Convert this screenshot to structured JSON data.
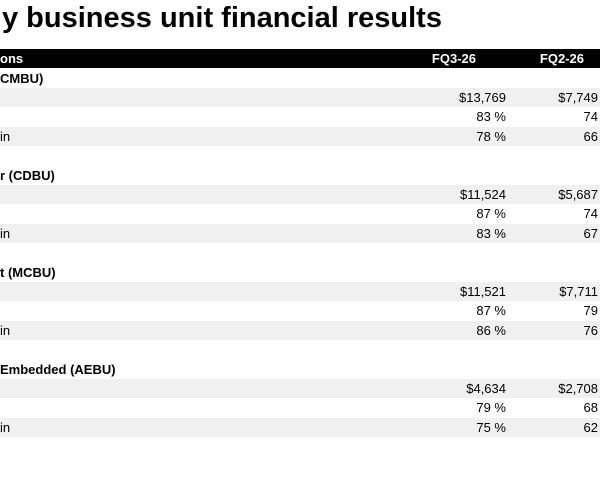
{
  "title": "y business unit financial results",
  "header": {
    "label": "ons",
    "columns": [
      "FQ3-26",
      "FQ2-26"
    ]
  },
  "sections": [
    {
      "label": "CMBU)",
      "rows": [
        {
          "values": [
            "$13,769",
            "$7,749"
          ]
        },
        {
          "values": [
            "83 %",
            "74"
          ]
        },
        {
          "label": "in",
          "values": [
            "78 %",
            "66"
          ]
        }
      ]
    },
    {
      "label": "r (CDBU)",
      "rows": [
        {
          "values": [
            "$11,524",
            "$5,687"
          ]
        },
        {
          "values": [
            "87 %",
            "74"
          ]
        },
        {
          "label": "in",
          "values": [
            "83 %",
            "67"
          ]
        }
      ]
    },
    {
      "label": "t (MCBU)",
      "rows": [
        {
          "values": [
            "$11,521",
            "$7,711"
          ]
        },
        {
          "values": [
            "87 %",
            "79"
          ]
        },
        {
          "label": "in",
          "values": [
            "86 %",
            "76"
          ]
        }
      ]
    },
    {
      "label": "Embedded (AEBU)",
      "rows": [
        {
          "values": [
            "$4,634",
            "$2,708"
          ]
        },
        {
          "values": [
            "79 %",
            "68"
          ]
        },
        {
          "label": "in",
          "values": [
            "75 %",
            "62"
          ]
        }
      ]
    }
  ]
}
